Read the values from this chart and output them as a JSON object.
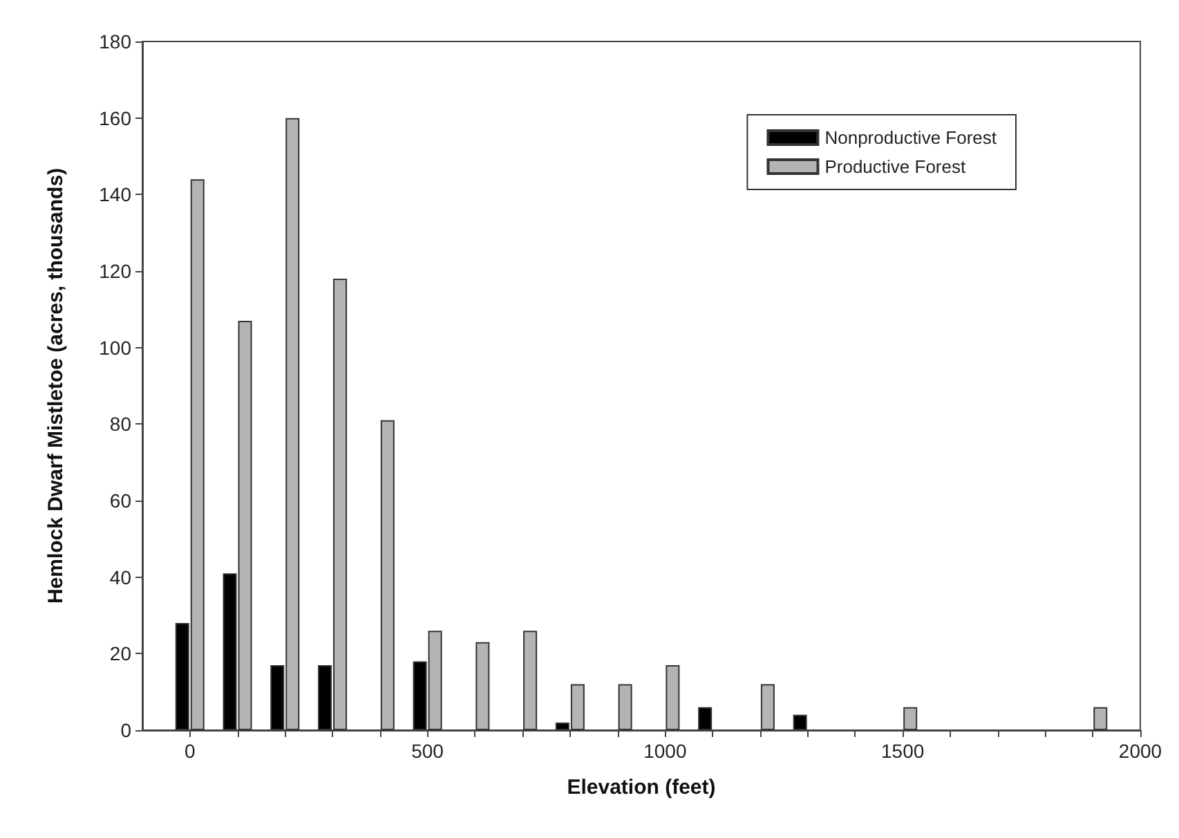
{
  "chart_data": {
    "type": "bar",
    "xlabel": "Elevation (feet)",
    "ylabel": "Hemlock Dwarf Mistletoe (acres, thousands)",
    "x": [
      0,
      100,
      200,
      300,
      400,
      500,
      600,
      700,
      800,
      900,
      1000,
      1100,
      1200,
      1300,
      1400,
      1500,
      1600,
      1700,
      1800,
      1900
    ],
    "series": [
      {
        "name": "Nonproductive Forest",
        "color": "#000000",
        "values": [
          28,
          41,
          17,
          17,
          null,
          18,
          null,
          null,
          2,
          null,
          null,
          6,
          null,
          4,
          null,
          null,
          null,
          null,
          null,
          null
        ]
      },
      {
        "name": "Productive Forest",
        "color": "#b4b4b4",
        "values": [
          144,
          107,
          160,
          118,
          81,
          26,
          23,
          26,
          12,
          12,
          17,
          null,
          12,
          null,
          null,
          6,
          null,
          null,
          null,
          6
        ]
      }
    ],
    "xlim": [
      -100,
      2000
    ],
    "xticks": [
      0,
      {
        "value": 100,
        "label": null
      },
      {
        "value": 200,
        "label": null
      },
      {
        "value": 300,
        "label": null
      },
      {
        "value": 400,
        "label": null
      },
      500,
      {
        "value": 600,
        "label": null
      },
      {
        "value": 700,
        "label": null
      },
      {
        "value": 800,
        "label": null
      },
      {
        "value": 900,
        "label": null
      },
      1000,
      {
        "value": 1100,
        "label": null
      },
      {
        "value": 1200,
        "label": null
      },
      {
        "value": 1300,
        "label": null
      },
      {
        "value": 1400,
        "label": null
      },
      1500,
      {
        "value": 1600,
        "label": null
      },
      {
        "value": 1700,
        "label": null
      },
      {
        "value": 1800,
        "label": null
      },
      {
        "value": 1900,
        "label": null
      },
      2000
    ],
    "ylim": [
      0,
      180
    ],
    "yticks": [
      0,
      20,
      40,
      60,
      80,
      100,
      120,
      140,
      160,
      180
    ],
    "grid": false,
    "legend": "top right"
  }
}
